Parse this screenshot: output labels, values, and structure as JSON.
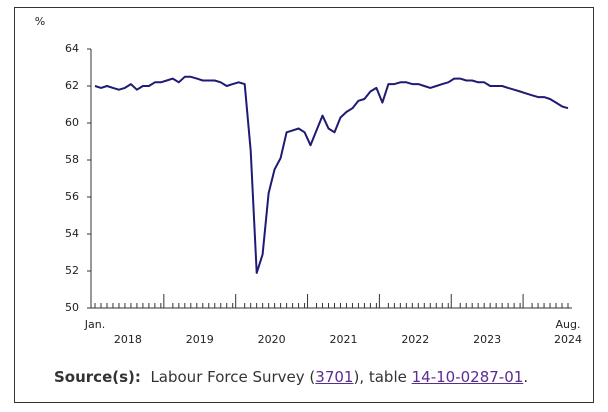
{
  "chart_data": {
    "type": "line",
    "ylabel": "%",
    "start_label": "Jan.",
    "end_label": "Aug.",
    "year_labels": [
      "2018",
      "2019",
      "2020",
      "2021",
      "2022",
      "2023",
      "2024"
    ],
    "series": [
      {
        "color": "#1f1a73",
        "values": [
          62.0,
          61.9,
          62.0,
          61.9,
          61.8,
          61.9,
          62.1,
          61.8,
          62.0,
          62.0,
          62.2,
          62.2,
          62.3,
          62.4,
          62.2,
          62.5,
          62.5,
          62.4,
          62.3,
          62.3,
          62.3,
          62.2,
          62.0,
          62.1,
          62.2,
          62.1,
          58.5,
          51.9,
          52.9,
          56.2,
          57.5,
          58.1,
          59.5,
          59.6,
          59.7,
          59.5,
          58.8,
          59.6,
          60.4,
          59.7,
          59.5,
          60.3,
          60.6,
          60.8,
          61.2,
          61.3,
          61.7,
          61.9,
          61.1,
          62.1,
          62.1,
          62.2,
          62.2,
          62.1,
          62.1,
          62.0,
          61.9,
          62.0,
          62.1,
          62.2,
          62.4,
          62.4,
          62.3,
          62.3,
          62.2,
          62.2,
          62.0,
          62.0,
          62.0,
          61.9,
          61.8,
          61.7,
          61.6,
          61.5,
          61.4,
          61.4,
          61.3,
          61.1,
          60.9,
          60.8
        ]
      }
    ],
    "ylim": [
      50,
      64
    ],
    "yticks": [
      50,
      52,
      54,
      56,
      58,
      60,
      62,
      64
    ]
  },
  "source": {
    "label": "Source(s):",
    "text1": "Labour Force Survey (",
    "link1": "3701",
    "text2": "), table ",
    "link2": "14-10-0287-01",
    "text3": "."
  }
}
